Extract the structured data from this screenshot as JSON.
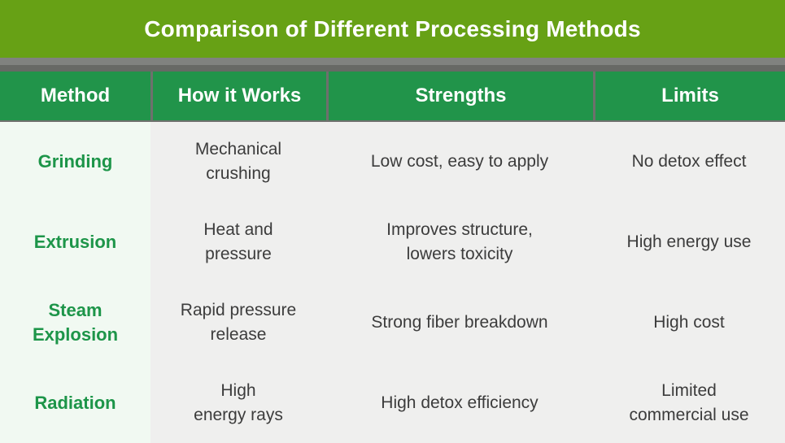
{
  "title": "Comparison of Different Processing Methods",
  "colors": {
    "banner_green": "#67a115",
    "strip_gray_light": "#80827f",
    "strip_gray_dark": "#676965",
    "header_green": "#21944a",
    "divider_gray": "#6e706d",
    "method_column_bg": "#f1f9f2",
    "cell_bg": "#efefee",
    "method_text_green": "#1d9549",
    "body_text": "#3c3c3c",
    "header_text": "#ffffff"
  },
  "chart_data": {
    "type": "table",
    "title": "Comparison of Different Processing Methods",
    "columns": [
      "Method",
      "How it Works",
      "Strengths",
      "Limits"
    ],
    "rows": [
      {
        "method": "Grinding",
        "how_it_works": "Mechanical\ncrushing",
        "strengths": "Low cost, easy to apply",
        "limits": "No detox effect"
      },
      {
        "method": "Extrusion",
        "how_it_works": "Heat and\npressure",
        "strengths": "Improves structure,\nlowers toxicity",
        "limits": "High energy use"
      },
      {
        "method": "Steam\nExplosion",
        "how_it_works": "Rapid pressure\nrelease",
        "strengths": "Strong fiber breakdown",
        "limits": "High cost"
      },
      {
        "method": "Radiation",
        "how_it_works": "High\nenergy rays",
        "strengths": "High detox efficiency",
        "limits": "Limited\ncommercial use"
      }
    ]
  }
}
